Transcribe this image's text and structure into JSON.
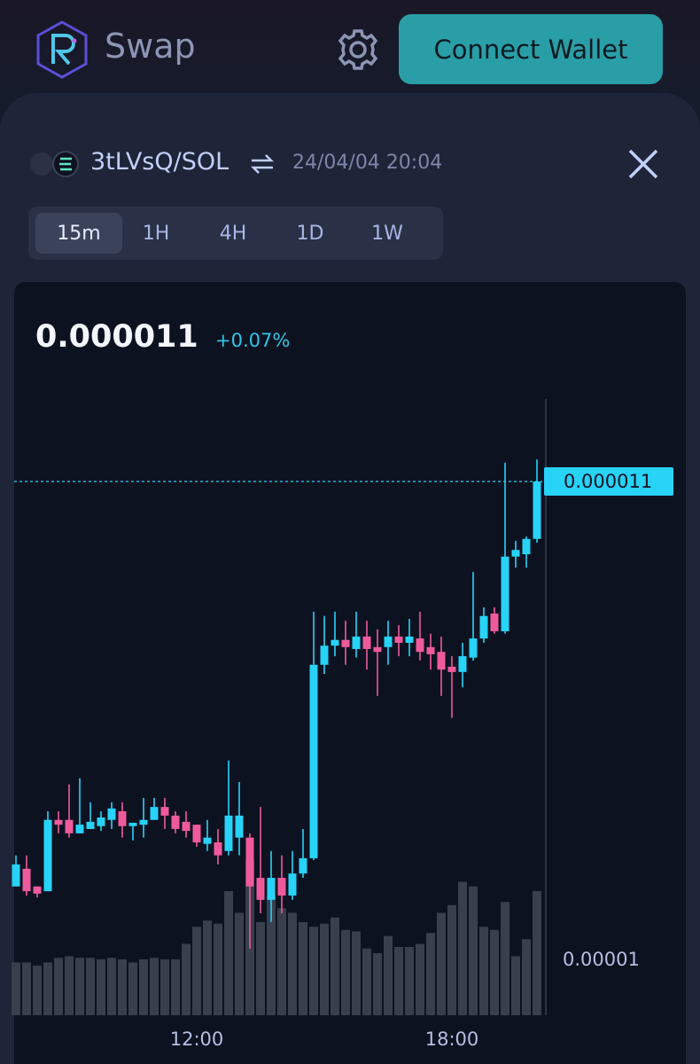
{
  "header": {
    "title": "Swap",
    "button": "Connect Wallet"
  },
  "pair": {
    "name": "3tLVsQ/SOL",
    "timestamp": "24/04/04 20:04"
  },
  "timeframes": {
    "options": [
      "15m",
      "1H",
      "4H",
      "1D",
      "1W"
    ],
    "selected": 0
  },
  "chart_data": {
    "type": "candlestick",
    "price": 1.1e-05,
    "change": "+0.07%",
    "categories": [
      null,
      null,
      null,
      null,
      null,
      null,
      null,
      null,
      null,
      null,
      null,
      null,
      null,
      null,
      null,
      null,
      null,
      "12:00",
      null,
      null,
      null,
      null,
      null,
      null,
      null,
      null,
      null,
      null,
      null,
      null,
      null,
      null,
      null,
      null,
      null,
      null,
      null,
      null,
      null,
      null,
      null,
      "18:00",
      null,
      null,
      null,
      null,
      null,
      null,
      null,
      null
    ],
    "open": [
      1.0154e-05,
      1.0191e-05,
      1.0154e-05,
      1.0144e-05,
      1.0293e-05,
      1.0293e-05,
      1.0265e-05,
      1.0274e-05,
      1.028e-05,
      1.0293e-05,
      1.0311e-05,
      1.028e-05,
      1.0283e-05,
      1.0293e-05,
      1.032e-05,
      1.0302e-05,
      1.0289e-05,
      1.0283e-05,
      1.0243e-05,
      1.0246e-05,
      1.0228e-05,
      1.0256e-05,
      1.0256e-05,
      1.0172e-05,
      1.0126e-05,
      1.0172e-05,
      1.0135e-05,
      1.0181e-05,
      1.0213e-05,
      1.0617e-05,
      1.0657e-05,
      1.0669e-05,
      1.065e-05,
      1.0676e-05,
      1.0654e-05,
      1.0654e-05,
      1.0676e-05,
      1.0663e-05,
      1.0672e-05,
      1.0654e-05,
      1.0644e-05,
      1.0613e-05,
      1.0602e-05,
      1.0632e-05,
      1.0672e-05,
      1.0724e-05,
      1.0687e-05,
      1.0843e-05,
      1.0848e-05,
      1.088e-05
    ],
    "high": [
      1.0219e-05,
      1.0219e-05,
      1.0154e-05,
      1.0311e-05,
      1.0311e-05,
      1.0367e-05,
      1.038e-05,
      1.033e-05,
      1.0311e-05,
      1.033e-05,
      1.033e-05,
      1.0287e-05,
      1.0339e-05,
      1.0339e-05,
      1.0339e-05,
      1.0311e-05,
      1.0311e-05,
      1.0283e-05,
      1.0293e-05,
      1.0274e-05,
      1.0417e-05,
      1.0372e-05,
      1.0265e-05,
      1.032e-05,
      1.0228e-05,
      1.0219e-05,
      1.0228e-05,
      1.0274e-05,
      1.0728e-05,
      1.0719e-05,
      1.0728e-05,
      1.0709e-05,
      1.0728e-05,
      1.0709e-05,
      1.0691e-05,
      1.0709e-05,
      1.07e-05,
      1.0713e-05,
      1.0728e-05,
      1.0682e-05,
      1.0676e-05,
      1.0635e-05,
      1.0663e-05,
      1.0811e-05,
      1.0737e-05,
      1.0737e-05,
      1.1039e-05,
      1.0876e-05,
      1.0885e-05,
      1.1046e-05
    ],
    "low": [
      1.0154e-05,
      1.0135e-05,
      1.0131e-05,
      1.0144e-05,
      1.0265e-05,
      1.0256e-05,
      1.0265e-05,
      1.0274e-05,
      1.027e-05,
      1.0274e-05,
      1.0256e-05,
      1.025e-05,
      1.0256e-05,
      1.0293e-05,
      1.0274e-05,
      1.0265e-05,
      1.0256e-05,
      1.0237e-05,
      1.0228e-05,
      1.02e-05,
      1.0219e-05,
      1.0219e-05,
      1.0024e-05,
      1.0098e-05,
      1.008e-05,
      1.0098e-05,
      1.0126e-05,
      1.0172e-05,
      1.0209e-05,
      1.0598e-05,
      1.0635e-05,
      1.0617e-05,
      1.0632e-05,
      1.0607e-05,
      1.0552e-05,
      1.0617e-05,
      1.0635e-05,
      1.0635e-05,
      1.0626e-05,
      1.0607e-05,
      1.0552e-05,
      1.0506e-05,
      1.057e-05,
      1.0626e-05,
      1.0663e-05,
      1.0682e-05,
      1.0682e-05,
      1.082e-05,
      1.082e-05,
      1.0872e-05
    ],
    "close": [
      1.02e-05,
      1.0144e-05,
      1.0139e-05,
      1.0293e-05,
      1.0283e-05,
      1.0265e-05,
      1.0283e-05,
      1.0289e-05,
      1.0298e-05,
      1.0317e-05,
      1.028e-05,
      1.0287e-05,
      1.0293e-05,
      1.032e-05,
      1.0302e-05,
      1.0274e-05,
      1.027e-05,
      1.0246e-05,
      1.0256e-05,
      1.0219e-05,
      1.0302e-05,
      1.0302e-05,
      1.0154e-05,
      1.0126e-05,
      1.0172e-05,
      1.0135e-05,
      1.0181e-05,
      1.0213e-05,
      1.0617e-05,
      1.0657e-05,
      1.0669e-05,
      1.0654e-05,
      1.0676e-05,
      1.065e-05,
      1.0644e-05,
      1.0676e-05,
      1.0663e-05,
      1.0676e-05,
      1.0644e-05,
      1.0639e-05,
      1.0607e-05,
      1.0602e-05,
      1.0635e-05,
      1.0672e-05,
      1.0719e-05,
      1.0687e-05,
      1.0843e-05,
      1.0857e-05,
      1.088e-05,
      1.1e-05
    ],
    "volume": [
      34,
      34,
      32,
      34,
      37,
      38,
      37,
      37,
      36,
      37,
      36,
      34,
      36,
      37,
      36,
      36,
      46,
      57,
      61,
      59,
      80,
      66,
      100,
      60,
      77,
      69,
      66,
      60,
      57,
      59,
      63,
      55,
      54,
      43,
      40,
      51,
      44,
      44,
      46,
      53,
      66,
      71,
      86,
      83,
      57,
      55,
      73,
      38,
      49,
      80
    ],
    "volume_ylim": [
      0,
      100
    ],
    "ylim": [
      9.885e-06,
      1.1413e-05
    ],
    "yticks": [
      1e-05
    ],
    "up_color": "#27d3f7",
    "down_color": "#ef5a9d",
    "volume_color": "#3a3f4d"
  }
}
